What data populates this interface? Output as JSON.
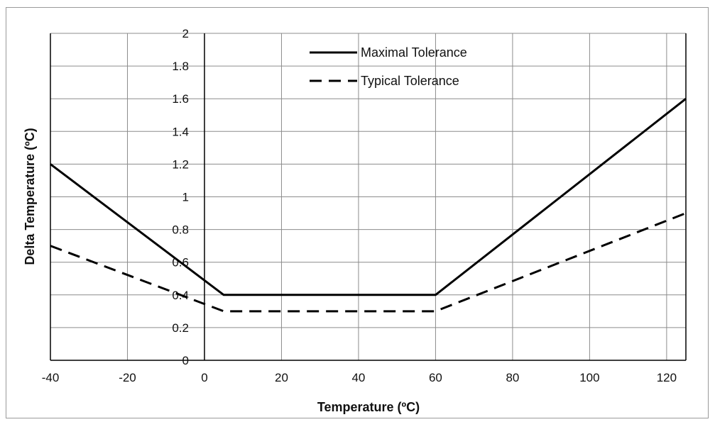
{
  "chart_data": {
    "type": "line",
    "title": "",
    "xlabel": "Temperature (ºC)",
    "ylabel": "Delta Temperature (ºC)",
    "xlim": [
      -40,
      125
    ],
    "ylim": [
      0,
      2
    ],
    "x_ticks": [
      -40,
      -20,
      0,
      20,
      40,
      60,
      80,
      100,
      120
    ],
    "y_ticks": [
      0,
      0.2,
      0.4,
      0.6,
      0.8,
      1,
      1.2,
      1.4,
      1.6,
      1.8,
      2
    ],
    "x_gridlines": [
      -40,
      -20,
      0,
      20,
      40,
      60,
      80,
      100,
      120,
      125
    ],
    "grid": true,
    "legend_position": "top-center",
    "series": [
      {
        "name": "Maximal Tolerance",
        "style": "solid",
        "color": "#000000",
        "points": [
          [
            -40,
            1.2
          ],
          [
            5,
            0.4
          ],
          [
            60,
            0.4
          ],
          [
            125,
            1.6
          ]
        ]
      },
      {
        "name": "Typical Tolerance",
        "style": "dashed",
        "color": "#000000",
        "points": [
          [
            -40,
            0.7
          ],
          [
            5,
            0.3
          ],
          [
            60,
            0.3
          ],
          [
            125,
            0.9
          ]
        ]
      }
    ]
  }
}
